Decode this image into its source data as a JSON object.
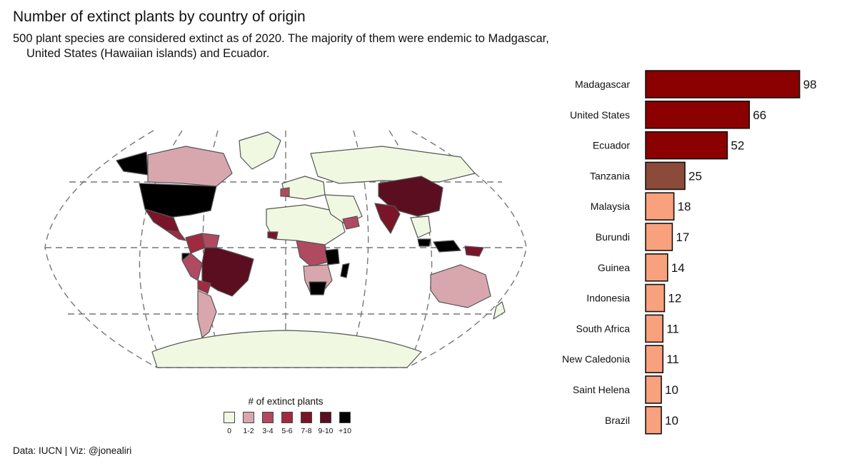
{
  "header": {
    "title": "Number of extinct plants by country of origin",
    "subtitle_line1": "500 plant species are considered extinct as of 2020. The majority of them were endemic to Madgascar,",
    "subtitle_line2": "United States (Hawaiian islands) and Ecuador."
  },
  "caption": "Data: IUCN | Viz: @jonealiri",
  "legend": {
    "title": "# of extinct plants",
    "items": [
      {
        "label": "0",
        "color": "#f0f8e2"
      },
      {
        "label": "1-2",
        "color": "#d8a7ae"
      },
      {
        "label": "3-4",
        "color": "#b04a60"
      },
      {
        "label": "5-6",
        "color": "#a02a40"
      },
      {
        "label": "7-8",
        "color": "#7a1428"
      },
      {
        "label": "9-10",
        "color": "#5a0e20"
      },
      {
        "label": "+10",
        "color": "#000000"
      }
    ]
  },
  "map_colors": {
    "land_zero": "#f0f8e2",
    "border": "#555555",
    "graticule": "#777777"
  },
  "chart_data": {
    "type": "bar",
    "orientation": "horizontal",
    "title": "Number of extinct plants by country of origin",
    "categories": [
      "Madagascar",
      "United States",
      "Ecuador",
      "Tanzania",
      "Malaysia",
      "Burundi",
      "Guinea",
      "Indonesia",
      "South Africa",
      "New Caledonia",
      "Saint Helena",
      "Brazil"
    ],
    "values": [
      98,
      66,
      52,
      25,
      18,
      17,
      14,
      12,
      11,
      11,
      10,
      10
    ],
    "colors": [
      "#8b0000",
      "#8b0000",
      "#8b0000",
      "#8c4a3a",
      "#f9a07c",
      "#f9a07c",
      "#f9a07c",
      "#f9a07c",
      "#f9a07c",
      "#f9a07c",
      "#f9a07c",
      "#f9a07c"
    ],
    "data_labels": [
      "98",
      "66",
      "52",
      "25",
      "18",
      "17",
      "14",
      "12",
      "11",
      "11",
      "10",
      "10"
    ],
    "xlim": [
      0,
      100
    ],
    "grid": false
  }
}
